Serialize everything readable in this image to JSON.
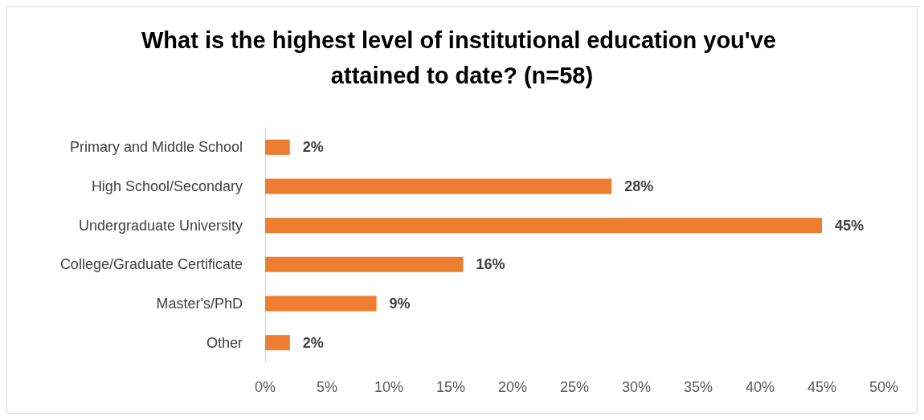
{
  "chart_data": {
    "type": "bar",
    "orientation": "horizontal",
    "title": "What is the highest level of institutional education you've attained to date? (n=58)",
    "categories": [
      "Primary and Middle School",
      "High School/Secondary",
      "Undergraduate University",
      "College/Graduate Certificate",
      "Master's/PhD",
      "Other"
    ],
    "values": [
      2,
      28,
      45,
      16,
      9,
      2
    ],
    "value_labels": [
      "2%",
      "28%",
      "45%",
      "16%",
      "9%",
      "2%"
    ],
    "color": "#ed7d31",
    "xlim": [
      0,
      50
    ],
    "xticks": [
      {
        "value": 0,
        "label": "0%"
      },
      {
        "value": 5,
        "label": "5%"
      },
      {
        "value": 10,
        "label": "10%"
      },
      {
        "value": 15,
        "label": "15%"
      },
      {
        "value": 20,
        "label": "20%"
      },
      {
        "value": 25,
        "label": "25%"
      },
      {
        "value": 30,
        "label": "30%"
      },
      {
        "value": 35,
        "label": "35%"
      },
      {
        "value": 40,
        "label": "40%"
      },
      {
        "value": 45,
        "label": "45%"
      },
      {
        "value": 50,
        "label": "50%"
      }
    ]
  }
}
